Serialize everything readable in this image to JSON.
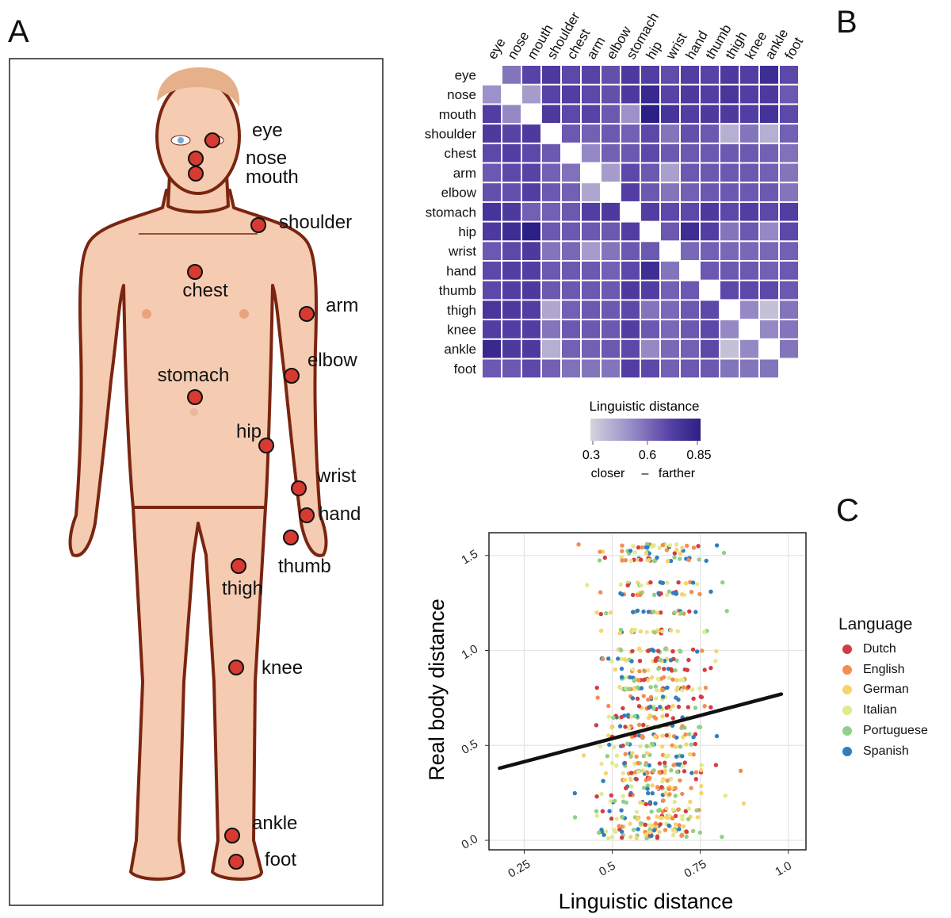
{
  "panels": {
    "a": "A",
    "b": "B",
    "c": "C"
  },
  "body_diagram": {
    "labels": [
      "eye",
      "nose",
      "mouth",
      "shoulder",
      "chest",
      "arm",
      "elbow",
      "stomach",
      "hip",
      "wrist",
      "hand",
      "thumb",
      "thigh",
      "knee",
      "ankle",
      "foot"
    ],
    "point_color": "#d63a31"
  },
  "chart_data": [
    {
      "type": "heatmap",
      "rows": [
        "eye",
        "nose",
        "mouth",
        "shoulder",
        "chest",
        "arm",
        "elbow",
        "stomach",
        "hip",
        "wrist",
        "hand",
        "thumb",
        "thigh",
        "knee",
        "ankle",
        "foot"
      ],
      "columns": [
        "eye",
        "nose",
        "mouth",
        "shoulder",
        "chest",
        "arm",
        "elbow",
        "stomach",
        "hip",
        "wrist",
        "hand",
        "thumb",
        "thigh",
        "knee",
        "ankle",
        "foot"
      ],
      "values": [
        [
          null,
          0.55,
          0.68,
          0.72,
          0.66,
          0.68,
          0.64,
          0.72,
          0.7,
          0.65,
          0.7,
          0.68,
          0.72,
          0.7,
          0.78,
          0.66
        ],
        [
          0.48,
          null,
          0.45,
          0.68,
          0.7,
          0.66,
          0.64,
          0.72,
          0.8,
          0.68,
          0.72,
          0.7,
          0.74,
          0.7,
          0.72,
          0.62
        ],
        [
          0.7,
          0.5,
          null,
          0.72,
          0.66,
          0.68,
          0.62,
          0.48,
          0.85,
          0.75,
          0.7,
          0.72,
          0.72,
          0.7,
          0.76,
          0.66
        ],
        [
          0.72,
          0.68,
          0.72,
          null,
          0.62,
          0.6,
          0.62,
          0.6,
          0.66,
          0.55,
          0.64,
          0.62,
          0.4,
          0.55,
          0.4,
          0.6
        ],
        [
          0.66,
          0.7,
          0.66,
          0.62,
          null,
          0.5,
          0.6,
          0.62,
          0.66,
          0.62,
          0.62,
          0.62,
          0.62,
          0.62,
          0.6,
          0.56
        ],
        [
          0.62,
          0.66,
          0.68,
          0.6,
          0.56,
          null,
          0.45,
          0.66,
          0.62,
          0.44,
          0.62,
          0.62,
          0.62,
          0.62,
          0.6,
          0.55
        ],
        [
          0.64,
          0.64,
          0.7,
          0.62,
          0.6,
          0.42,
          null,
          0.7,
          0.62,
          0.55,
          0.6,
          0.62,
          0.62,
          0.62,
          0.62,
          0.55
        ],
        [
          0.75,
          0.72,
          0.6,
          0.6,
          0.62,
          0.7,
          0.72,
          null,
          0.7,
          0.66,
          0.66,
          0.72,
          0.66,
          0.7,
          0.66,
          0.7
        ],
        [
          0.72,
          0.78,
          0.85,
          0.62,
          0.62,
          0.62,
          0.62,
          0.7,
          null,
          0.62,
          0.78,
          0.7,
          0.55,
          0.62,
          0.5,
          0.66
        ],
        [
          0.62,
          0.66,
          0.72,
          0.55,
          0.58,
          0.45,
          0.55,
          0.62,
          0.62,
          null,
          0.58,
          0.6,
          0.58,
          0.58,
          0.58,
          0.6
        ],
        [
          0.66,
          0.7,
          0.7,
          0.62,
          0.62,
          0.62,
          0.6,
          0.66,
          0.78,
          0.55,
          null,
          0.62,
          0.62,
          0.62,
          0.6,
          0.62
        ],
        [
          0.66,
          0.7,
          0.72,
          0.62,
          0.62,
          0.62,
          0.62,
          0.72,
          0.7,
          0.6,
          0.62,
          null,
          0.66,
          0.66,
          0.66,
          0.62
        ],
        [
          0.74,
          0.72,
          0.7,
          0.42,
          0.6,
          0.62,
          0.62,
          0.66,
          0.55,
          0.58,
          0.62,
          0.66,
          null,
          0.5,
          0.35,
          0.55
        ],
        [
          0.7,
          0.7,
          0.7,
          0.55,
          0.62,
          0.62,
          0.62,
          0.7,
          0.62,
          0.58,
          0.62,
          0.66,
          0.5,
          null,
          0.5,
          0.55
        ],
        [
          0.8,
          0.72,
          0.72,
          0.4,
          0.6,
          0.6,
          0.62,
          0.66,
          0.5,
          0.58,
          0.6,
          0.66,
          0.35,
          0.5,
          null,
          0.55
        ],
        [
          0.62,
          0.62,
          0.66,
          0.6,
          0.56,
          0.55,
          0.55,
          0.7,
          0.66,
          0.6,
          0.62,
          0.62,
          0.55,
          0.55,
          0.55,
          null
        ]
      ],
      "colorbar": {
        "title": "Linguistic distance",
        "ticks": [
          "0.3",
          "0.6",
          "0.85"
        ],
        "range": [
          0.3,
          0.85
        ],
        "caption_left": "closer",
        "caption_sep": "–",
        "caption_right": "farther",
        "colors": [
          "#d4d4dc",
          "#9b90c8",
          "#5a45a8",
          "#2c1f86"
        ]
      }
    },
    {
      "type": "scatter",
      "xlabel": "Linguistic distance",
      "ylabel": "Real body distance",
      "xlim": [
        0.15,
        1.05
      ],
      "ylim": [
        -0.05,
        1.62
      ],
      "x_ticks": [
        "0.25",
        "0.5",
        "0.75",
        "1.0"
      ],
      "y_ticks": [
        "0.0",
        "0.5",
        "1.0",
        "1.5"
      ],
      "grid": true,
      "regression_line": {
        "x": [
          0.18,
          0.98
        ],
        "y": [
          0.38,
          0.77
        ]
      },
      "legend_title": "Language",
      "legend_position": "right",
      "series": [
        {
          "name": "Dutch",
          "color": "#d33c44"
        },
        {
          "name": "English",
          "color": "#f48d4f"
        },
        {
          "name": "German",
          "color": "#f7d46b"
        },
        {
          "name": "Italian",
          "color": "#e3e98d"
        },
        {
          "name": "Portuguese",
          "color": "#8fd08a"
        },
        {
          "name": "Spanish",
          "color": "#2f7fbf"
        }
      ],
      "n_points_per_series": 120
    }
  ]
}
